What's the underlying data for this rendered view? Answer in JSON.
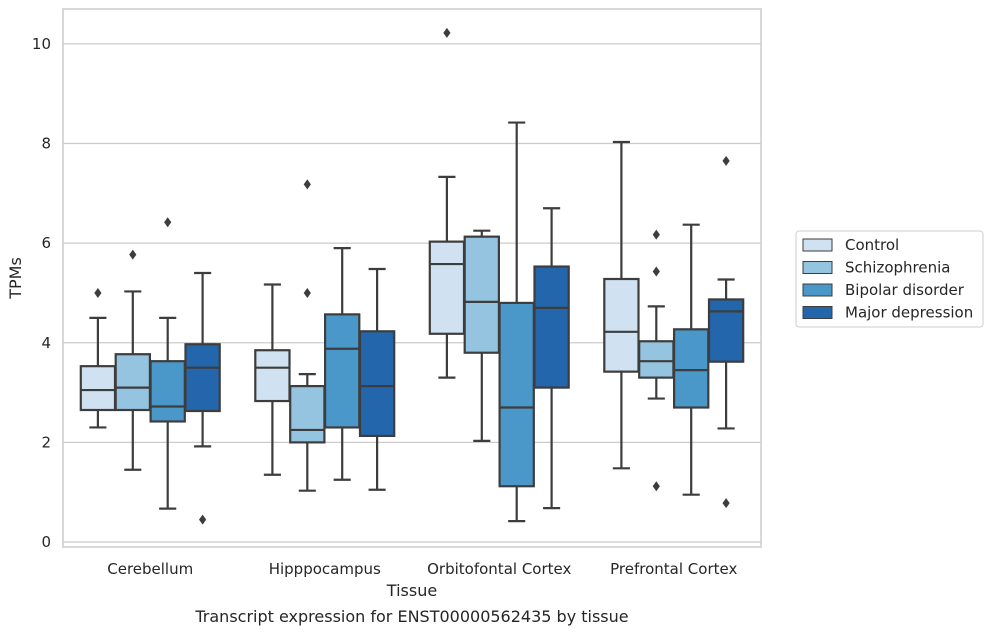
{
  "chart_data": {
    "type": "boxplot",
    "xlabel": "Tissue",
    "ylabel": "TPMs",
    "caption": "Transcript expression for ENST00000562435 by tissue",
    "ylim": [
      -0.1,
      10.7
    ],
    "yticks": [
      0,
      2,
      4,
      6,
      8,
      10
    ],
    "grid": "horizontal",
    "legend_position": "right",
    "categories": [
      "Cerebellum",
      "Hipppocampus",
      "Orbitofontal Cortex",
      "Prefrontal Cortex"
    ],
    "series": [
      {
        "name": "Control",
        "color": "#d0e1f2",
        "boxes": [
          {
            "whislo": 2.3,
            "q1": 2.65,
            "med": 3.05,
            "q3": 3.53,
            "whishi": 4.5,
            "fliers": [
              5.0
            ]
          },
          {
            "whislo": 1.35,
            "q1": 2.83,
            "med": 3.5,
            "q3": 3.85,
            "whishi": 5.17,
            "fliers": []
          },
          {
            "whislo": 3.3,
            "q1": 4.18,
            "med": 5.58,
            "q3": 6.03,
            "whishi": 7.33,
            "fliers": [
              10.22
            ]
          },
          {
            "whislo": 1.48,
            "q1": 3.42,
            "med": 4.22,
            "q3": 5.28,
            "whishi": 8.03,
            "fliers": []
          }
        ]
      },
      {
        "name": "Schizophrenia",
        "color": "#94c4df",
        "boxes": [
          {
            "whislo": 1.45,
            "q1": 2.65,
            "med": 3.1,
            "q3": 3.77,
            "whishi": 5.03,
            "fliers": [
              5.77
            ]
          },
          {
            "whislo": 1.03,
            "q1": 2.0,
            "med": 2.25,
            "q3": 3.13,
            "whishi": 3.37,
            "fliers": [
              5.0,
              7.18
            ]
          },
          {
            "whislo": 2.03,
            "q1": 3.8,
            "med": 4.82,
            "q3": 6.13,
            "whishi": 6.25,
            "fliers": []
          },
          {
            "whislo": 2.88,
            "q1": 3.3,
            "med": 3.63,
            "q3": 4.03,
            "whishi": 4.73,
            "fliers": [
              1.12,
              5.43,
              6.17
            ]
          }
        ]
      },
      {
        "name": "Bipolar disorder",
        "color": "#4a98c9",
        "boxes": [
          {
            "whislo": 0.67,
            "q1": 2.42,
            "med": 2.72,
            "q3": 3.63,
            "whishi": 4.5,
            "fliers": [
              6.42
            ]
          },
          {
            "whislo": 1.25,
            "q1": 2.3,
            "med": 3.88,
            "q3": 4.57,
            "whishi": 5.9,
            "fliers": []
          },
          {
            "whislo": 0.42,
            "q1": 1.12,
            "med": 2.7,
            "q3": 4.8,
            "whishi": 8.42,
            "fliers": []
          },
          {
            "whislo": 0.95,
            "q1": 2.7,
            "med": 3.45,
            "q3": 4.27,
            "whishi": 6.37,
            "fliers": []
          }
        ]
      },
      {
        "name": "Major depression",
        "color": "#2366ac",
        "boxes": [
          {
            "whislo": 1.92,
            "q1": 2.63,
            "med": 3.5,
            "q3": 3.97,
            "whishi": 5.4,
            "fliers": [
              0.45
            ]
          },
          {
            "whislo": 1.05,
            "q1": 2.13,
            "med": 3.13,
            "q3": 4.23,
            "whishi": 5.48,
            "fliers": []
          },
          {
            "whislo": 0.68,
            "q1": 3.1,
            "med": 4.7,
            "q3": 5.53,
            "whishi": 6.7,
            "fliers": []
          },
          {
            "whislo": 2.28,
            "q1": 3.62,
            "med": 4.63,
            "q3": 4.87,
            "whishi": 5.27,
            "fliers": [
              0.78,
              7.65
            ]
          }
        ]
      }
    ]
  }
}
